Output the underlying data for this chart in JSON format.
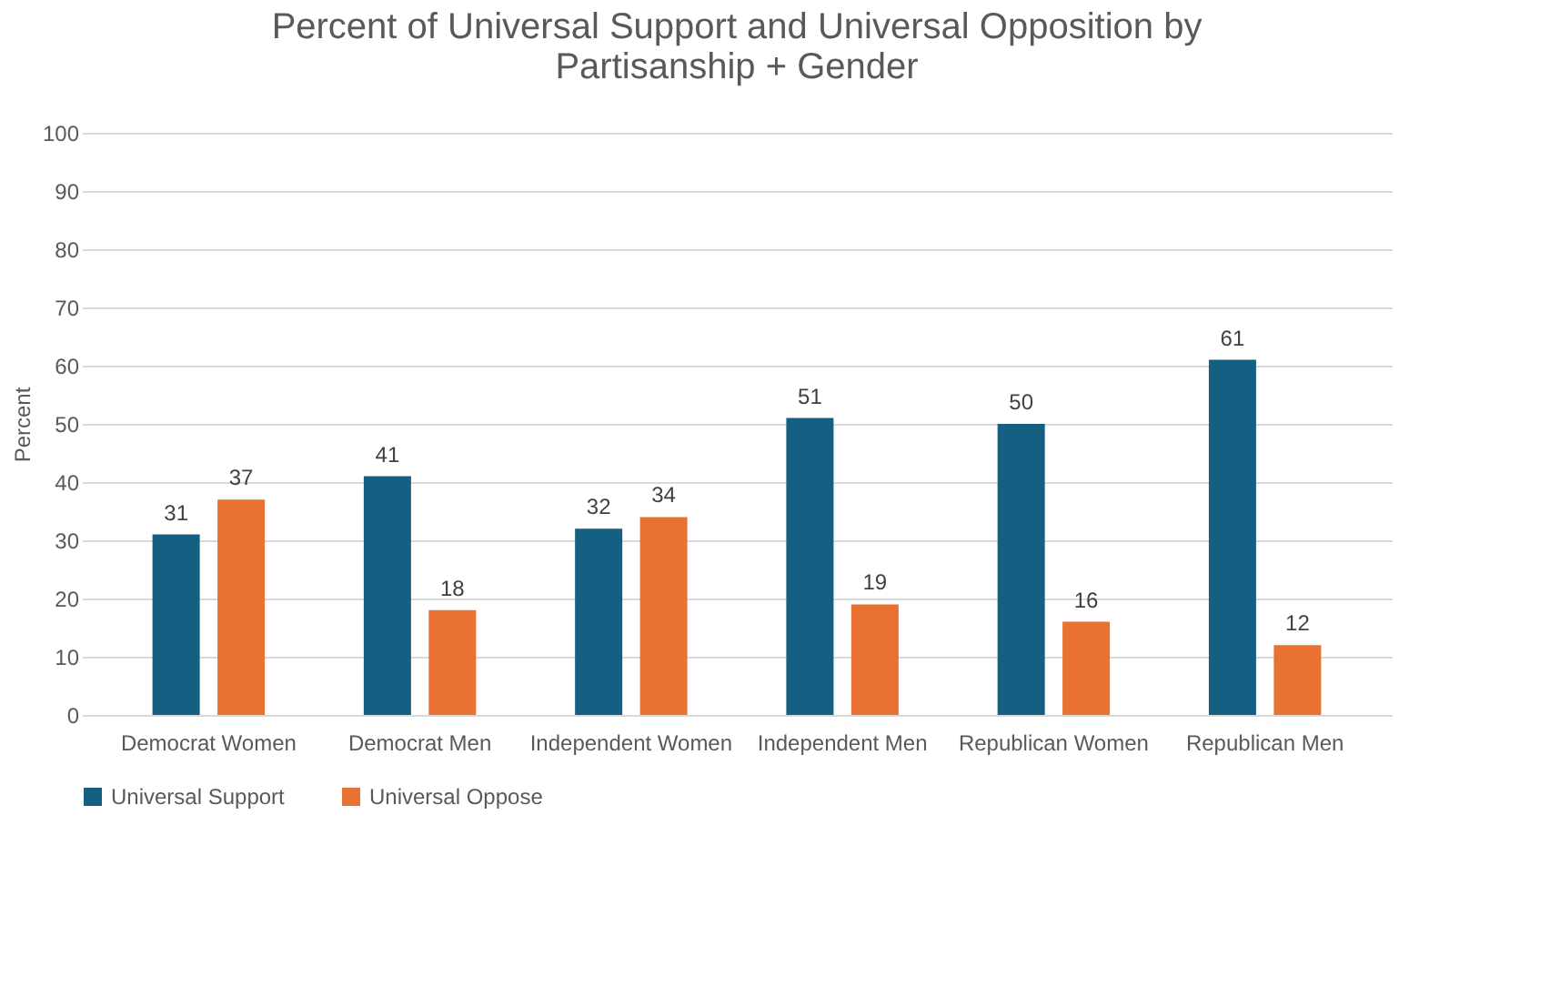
{
  "chart_data": {
    "type": "bar",
    "title": "Percent of Universal Support and Universal Opposition by Partisanship + Gender",
    "ylabel": "Percent",
    "categories": [
      "Democrat Women",
      "Democrat Men",
      "Independent Women",
      "Independent Men",
      "Republican Women",
      "Republican Men"
    ],
    "series": [
      {
        "name": "Universal Support",
        "color": "#156082",
        "values": [
          31,
          41,
          32,
          51,
          50,
          61
        ]
      },
      {
        "name": "Universal Oppose",
        "color": "#e97132",
        "values": [
          37,
          18,
          34,
          19,
          16,
          12
        ]
      }
    ],
    "ylim": [
      0,
      100
    ],
    "yticks": [
      0,
      10,
      20,
      30,
      40,
      50,
      60,
      70,
      80,
      90,
      100
    ],
    "grid": "y",
    "legend": "bottom",
    "data_labels": true
  }
}
